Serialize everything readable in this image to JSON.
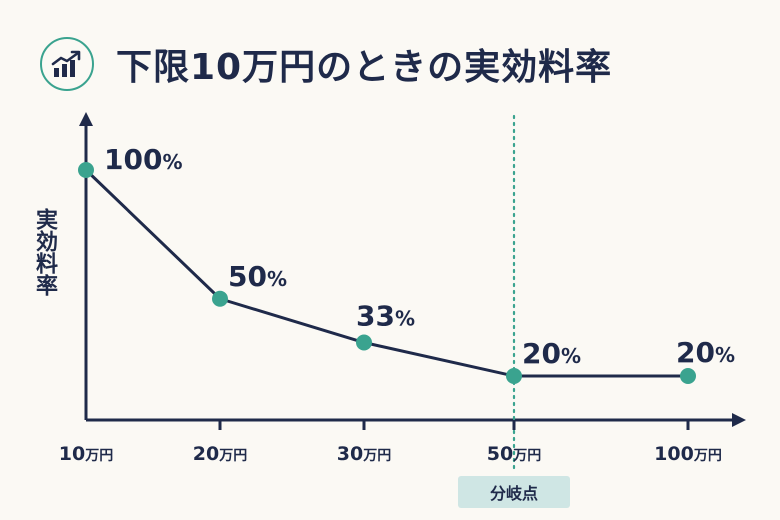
{
  "header": {
    "title": "下限10万円のときの実効料率",
    "icon": "trending-up-bar-chart-icon"
  },
  "colors": {
    "navy": "#1f2a4a",
    "teal": "#3aa38f",
    "tag_bg": "#cfe6e4",
    "background": "#fbf9f4"
  },
  "chart_data": {
    "type": "line",
    "title": "下限10万円のときの実効料率",
    "ylabel": "実効料率",
    "xlabel": "",
    "x_scale": "categorical",
    "categories": [
      {
        "num": "10",
        "unit": "万円"
      },
      {
        "num": "20",
        "unit": "万円"
      },
      {
        "num": "30",
        "unit": "万円"
      },
      {
        "num": "50",
        "unit": "万円"
      },
      {
        "num": "100",
        "unit": "万円"
      }
    ],
    "series": [
      {
        "values": [
          100,
          50,
          33,
          20,
          20
        ],
        "labels": [
          {
            "num": "100",
            "unit": "%"
          },
          {
            "num": "50",
            "unit": "%"
          },
          {
            "num": "33",
            "unit": "%"
          },
          {
            "num": "20",
            "unit": "%"
          },
          {
            "num": "20",
            "unit": "%"
          }
        ]
      }
    ],
    "annotation": {
      "at_category_index": 3,
      "label": "分岐点",
      "style": "dotted-vertical-line"
    },
    "ylim": [
      0,
      110
    ],
    "y_ticks": false,
    "grid": false
  }
}
